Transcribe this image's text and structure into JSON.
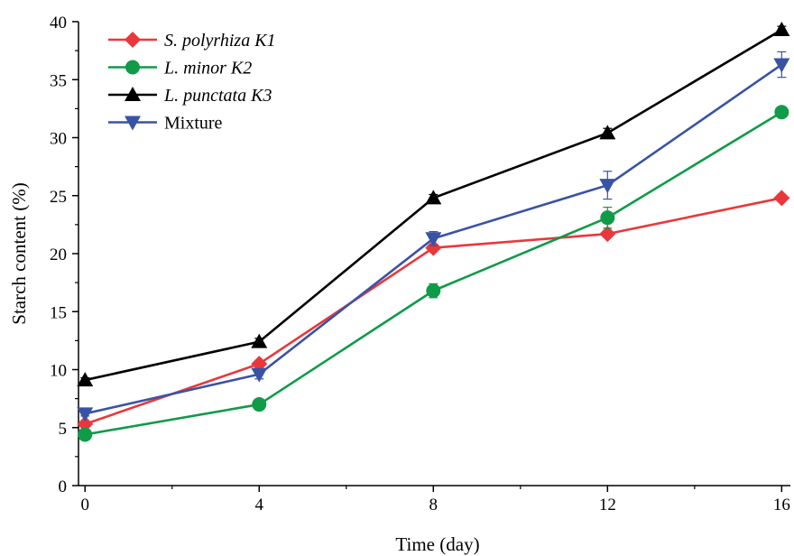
{
  "chart_data": {
    "type": "line",
    "xlabel": "Time (day)",
    "ylabel": "Starch content (%)",
    "x": [
      0,
      4,
      8,
      12,
      16
    ],
    "xticks": [
      0,
      4,
      8,
      12,
      16
    ],
    "yticks": [
      0,
      5,
      10,
      15,
      20,
      25,
      30,
      35,
      40
    ],
    "xlim": [
      -0.15,
      16.2
    ],
    "ylim": [
      0,
      40
    ],
    "grid": false,
    "legend_position": "top-left",
    "series": [
      {
        "name": "S. polyrhiza K1",
        "italic": true,
        "color": "#e8383b",
        "marker": "diamond",
        "values": [
          5.3,
          10.5,
          20.5,
          21.7,
          24.8
        ],
        "errors": [
          0.2,
          0.3,
          0.3,
          0.3,
          0.3
        ]
      },
      {
        "name": "L. minor K2",
        "italic": true,
        "color": "#0f9b48",
        "marker": "circle",
        "values": [
          4.4,
          7.0,
          16.8,
          23.1,
          32.2
        ],
        "errors": [
          0.2,
          0.2,
          0.6,
          0.9,
          0.3
        ]
      },
      {
        "name": "L. punctata K3",
        "italic": true,
        "color": "#000000",
        "marker": "triangle-up",
        "values": [
          9.1,
          12.4,
          24.8,
          30.4,
          39.3
        ],
        "errors": [
          0.2,
          0.3,
          0.3,
          0.4,
          0.3
        ]
      },
      {
        "name": "Mixture",
        "italic": false,
        "color": "#3953a4",
        "marker": "triangle-down",
        "values": [
          6.2,
          9.6,
          21.3,
          25.9,
          36.3
        ],
        "errors": [
          0.2,
          0.4,
          0.6,
          1.2,
          1.1
        ]
      }
    ]
  }
}
